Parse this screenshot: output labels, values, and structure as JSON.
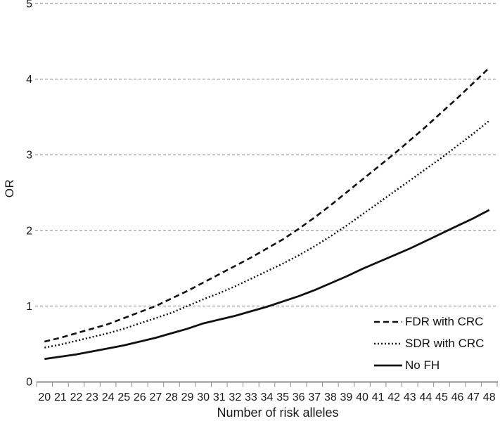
{
  "chart_data": {
    "type": "line",
    "title": "",
    "xlabel": "Number of risk alleles",
    "ylabel": "OR",
    "x": [
      20,
      21,
      22,
      23,
      24,
      25,
      26,
      27,
      28,
      29,
      30,
      31,
      32,
      33,
      34,
      35,
      36,
      37,
      38,
      39,
      40,
      41,
      42,
      43,
      44,
      45,
      46,
      47,
      48
    ],
    "y_tick_labels": [
      "0",
      "1",
      "2",
      "3",
      "4",
      "5"
    ],
    "ylim": [
      0,
      5
    ],
    "grid": "horizontal-dashed",
    "legend_position": "inside-bottom-right",
    "colors": {
      "line": "#111111",
      "gridline": "#a6a6a6",
      "axis": "#8c8c8c",
      "text": "#1a1a1a"
    },
    "series": [
      {
        "name": "FDR with CRC",
        "style": "dashed",
        "values": [
          0.53,
          0.58,
          0.64,
          0.7,
          0.76,
          0.84,
          0.92,
          1.0,
          1.1,
          1.2,
          1.31,
          1.42,
          1.53,
          1.64,
          1.76,
          1.88,
          2.02,
          2.17,
          2.33,
          2.5,
          2.67,
          2.84,
          3.01,
          3.19,
          3.37,
          3.56,
          3.75,
          3.95,
          4.15
        ]
      },
      {
        "name": "SDR with CRC",
        "style": "dotted",
        "values": [
          0.45,
          0.49,
          0.54,
          0.59,
          0.64,
          0.7,
          0.77,
          0.84,
          0.91,
          1.0,
          1.09,
          1.17,
          1.26,
          1.36,
          1.46,
          1.56,
          1.67,
          1.79,
          1.92,
          2.06,
          2.21,
          2.36,
          2.51,
          2.66,
          2.81,
          2.96,
          3.12,
          3.28,
          3.45
        ]
      },
      {
        "name": "No FH",
        "style": "solid",
        "values": [
          0.3,
          0.33,
          0.36,
          0.4,
          0.44,
          0.48,
          0.53,
          0.58,
          0.64,
          0.7,
          0.77,
          0.82,
          0.87,
          0.93,
          0.99,
          1.06,
          1.13,
          1.21,
          1.3,
          1.39,
          1.49,
          1.58,
          1.67,
          1.76,
          1.86,
          1.96,
          2.06,
          2.16,
          2.27
        ]
      }
    ]
  }
}
